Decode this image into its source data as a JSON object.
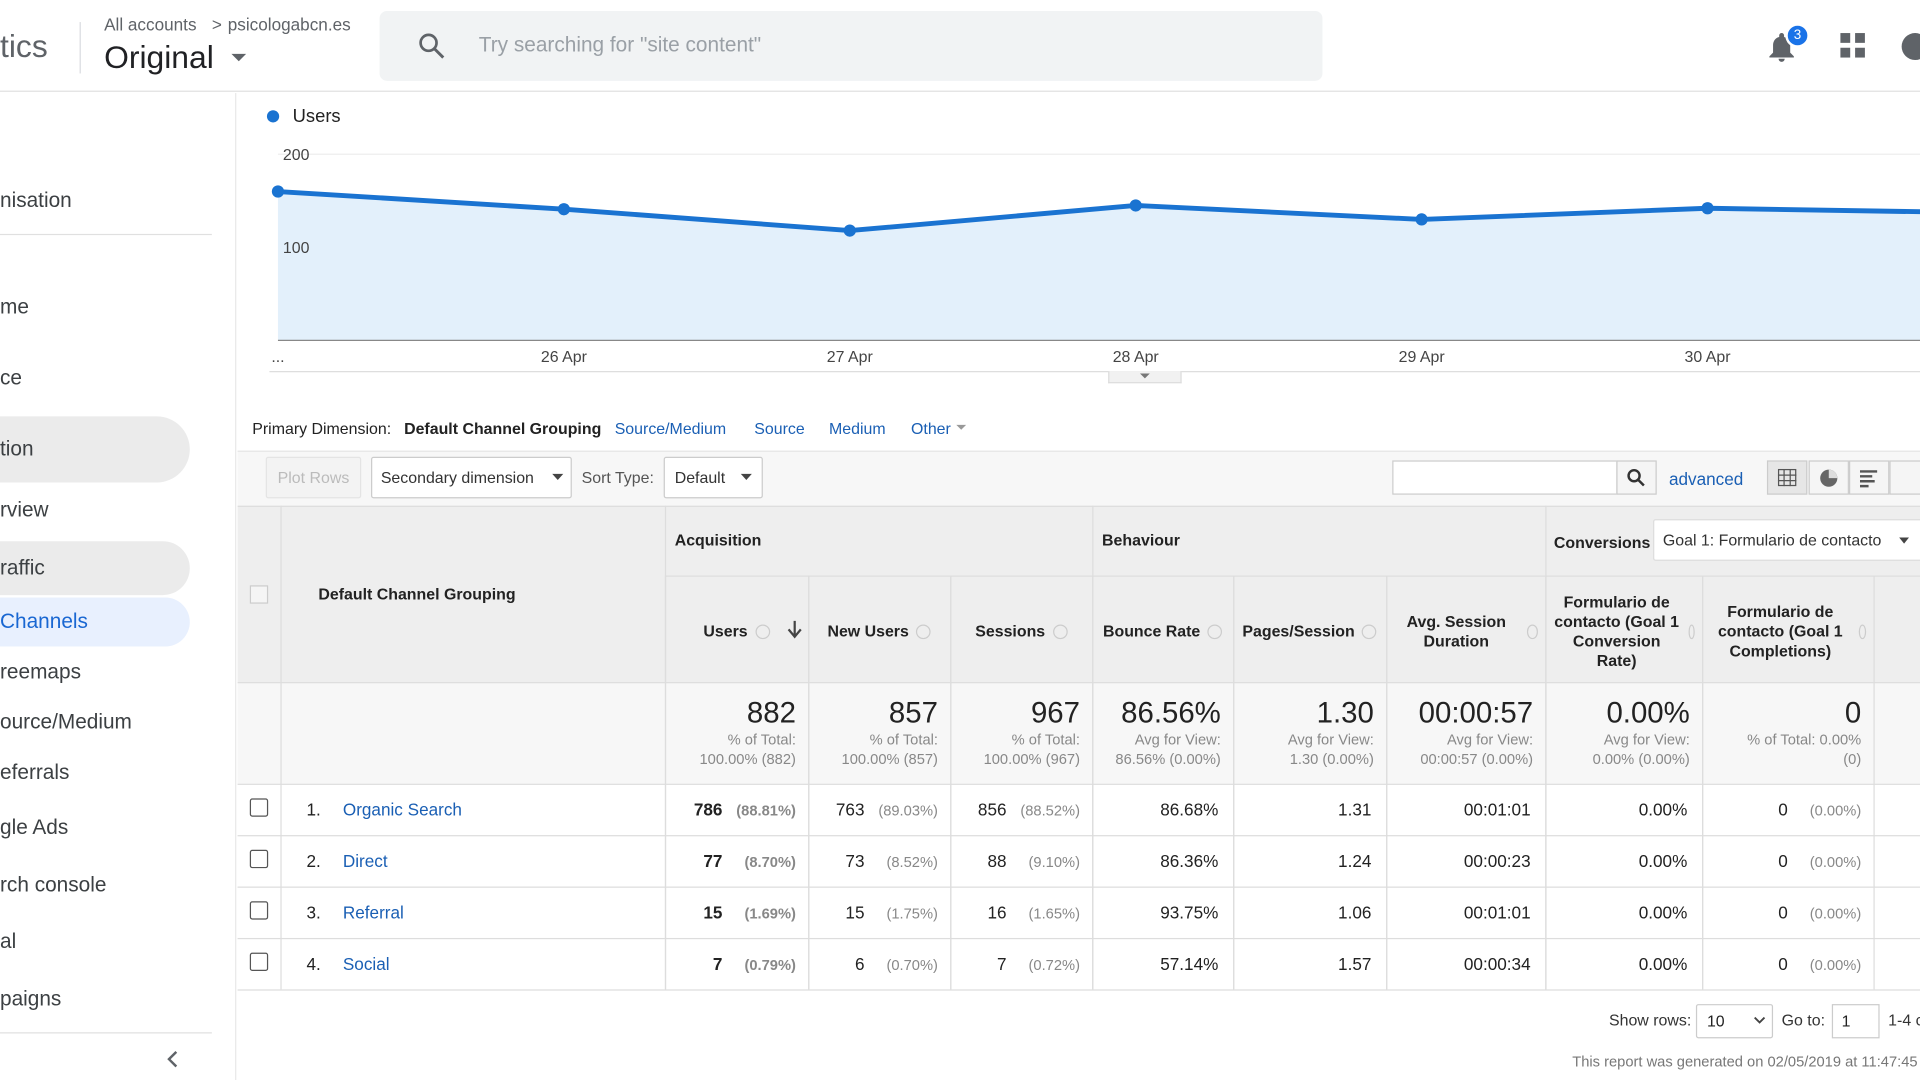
{
  "header": {
    "product": "tics",
    "breadcrumb": {
      "accounts": "All accounts",
      "separator": ">",
      "property": "psicologabcn.es"
    },
    "view": "Original",
    "search_placeholder": "Try searching for \"site content\"",
    "notifications": "3"
  },
  "sidebar": {
    "items": [
      "nisation",
      "me",
      "ce",
      "tion",
      "rview",
      "raffic",
      "Channels",
      "reemaps",
      "ource/Medium",
      "eferrals",
      "gle Ads",
      "rch console",
      "al",
      "paigns"
    ]
  },
  "chart_data": {
    "type": "line",
    "categories": [
      "...",
      "26 Apr",
      "27 Apr",
      "28 Apr",
      "29 Apr",
      "30 Apr",
      null
    ],
    "series": [
      {
        "name": "Users",
        "color": "#1a73d1",
        "values": [
          160,
          141,
          118,
          145,
          130,
          142,
          137
        ]
      }
    ],
    "ylim": [
      0,
      200
    ],
    "yticks": [
      100,
      200
    ],
    "grid": true
  },
  "dimension_bar": {
    "label": "Primary Dimension:",
    "active": "Default Channel Grouping",
    "options": [
      "Source/Medium",
      "Source",
      "Medium",
      "Other"
    ]
  },
  "toolbar": {
    "plot_rows": "Plot Rows",
    "secondary": "Secondary dimension",
    "sort_label": "Sort Type:",
    "sort_value": "Default",
    "advanced": "advanced"
  },
  "table": {
    "dimension": "Default Channel Grouping",
    "groups": [
      "Acquisition",
      "Behaviour",
      "Conversions"
    ],
    "goal_select": "Goal 1: Formulario de contacto",
    "columns": [
      "Users",
      "New Users",
      "Sessions",
      "Bounce Rate",
      "Pages/Session",
      "Avg. Session Duration",
      "Formulario de contacto (Goal 1 Conversion Rate)",
      "Formulario de contacto (Goal 1 Completions)"
    ],
    "totals": [
      {
        "value": "882",
        "lines": [
          "% of Total:",
          "100.00% (882)"
        ]
      },
      {
        "value": "857",
        "lines": [
          "% of Total:",
          "100.00% (857)"
        ]
      },
      {
        "value": "967",
        "lines": [
          "% of Total:",
          "100.00% (967)"
        ]
      },
      {
        "value": "86.56%",
        "lines": [
          "Avg for View:",
          "86.56% (0.00%)"
        ]
      },
      {
        "value": "1.30",
        "lines": [
          "Avg for View:",
          "1.30 (0.00%)"
        ]
      },
      {
        "value": "00:00:57",
        "lines": [
          "Avg for View:",
          "00:00:57 (0.00%)"
        ]
      },
      {
        "value": "0.00%",
        "lines": [
          "Avg for View:",
          "0.00% (0.00%)"
        ]
      },
      {
        "value": "0",
        "lines": [
          "% of Total: 0.00%",
          "(0)"
        ]
      }
    ],
    "rows": [
      {
        "num": "1.",
        "name": "Organic Search",
        "cells": [
          [
            "786",
            "(88.81%)"
          ],
          [
            "763",
            "(89.03%)"
          ],
          [
            "856",
            "(88.52%)"
          ],
          [
            "86.68%"
          ],
          [
            "1.31"
          ],
          [
            "00:01:01"
          ],
          [
            "0.00%"
          ],
          [
            "0",
            "(0.00%)"
          ]
        ]
      },
      {
        "num": "2.",
        "name": "Direct",
        "cells": [
          [
            "77",
            "(8.70%)"
          ],
          [
            "73",
            "(8.52%)"
          ],
          [
            "88",
            "(9.10%)"
          ],
          [
            "86.36%"
          ],
          [
            "1.24"
          ],
          [
            "00:00:23"
          ],
          [
            "0.00%"
          ],
          [
            "0",
            "(0.00%)"
          ]
        ]
      },
      {
        "num": "3.",
        "name": "Referral",
        "cells": [
          [
            "15",
            "(1.69%)"
          ],
          [
            "15",
            "(1.75%)"
          ],
          [
            "16",
            "(1.65%)"
          ],
          [
            "93.75%"
          ],
          [
            "1.06"
          ],
          [
            "00:01:01"
          ],
          [
            "0.00%"
          ],
          [
            "0",
            "(0.00%)"
          ]
        ]
      },
      {
        "num": "4.",
        "name": "Social",
        "cells": [
          [
            "7",
            "(0.79%)"
          ],
          [
            "6",
            "(0.70%)"
          ],
          [
            "7",
            "(0.72%)"
          ],
          [
            "57.14%"
          ],
          [
            "1.57"
          ],
          [
            "00:00:34"
          ],
          [
            "0.00%"
          ],
          [
            "0",
            "(0.00%)"
          ]
        ]
      }
    ]
  },
  "footer": {
    "show_rows_label": "Show rows:",
    "show_rows_value": "10",
    "goto_label": "Go to:",
    "goto_value": "1",
    "range": "1-4 c",
    "generated": "This report was generated on 02/05/2019 at 11:47:45"
  }
}
